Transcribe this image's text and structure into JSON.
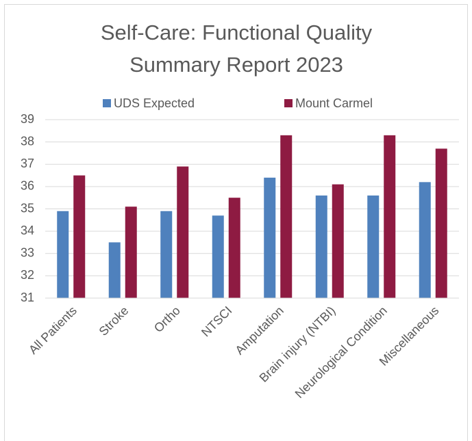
{
  "chart_data": {
    "type": "bar",
    "title": "Self-Care: Functional Quality Summary Report 2023",
    "categories": [
      "All Patients",
      "Stroke",
      "Ortho",
      "NTSCI",
      "Amputation",
      "Brain injury (NTBI)",
      "Neurological Condition",
      "Miscellaneous"
    ],
    "series": [
      {
        "name": "UDS Expected",
        "color": "#4f81bd",
        "values": [
          34.9,
          33.5,
          34.9,
          34.7,
          36.4,
          35.6,
          35.6,
          36.2
        ]
      },
      {
        "name": "Mount Carmel",
        "color": "#8e1b42",
        "values": [
          36.5,
          35.1,
          36.9,
          35.5,
          38.3,
          36.1,
          38.3,
          37.7
        ]
      }
    ],
    "ylim": [
      31,
      39
    ],
    "yticks": [
      31,
      32,
      33,
      34,
      35,
      36,
      37,
      38,
      39
    ],
    "grid": true,
    "legend": "top"
  }
}
